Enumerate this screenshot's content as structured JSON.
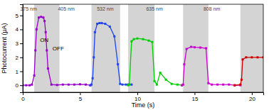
{
  "chart_data": {
    "type": "line",
    "xlabel": "Time (s)",
    "ylabel": "Photocurrent (μA)",
    "xlim": [
      0,
      21
    ],
    "ylim": [
      -0.5,
      5.8
    ],
    "xticks": [
      0,
      5,
      10,
      15,
      20
    ],
    "yticks": [
      0,
      1,
      2,
      3,
      4,
      5
    ],
    "grid": false,
    "marker": "square",
    "shaded_regions": {
      "color": "#cccccc",
      "ranges": [
        [
          1.0,
          3.2
        ],
        [
          6.0,
          8.5
        ],
        [
          9.2,
          11.5
        ],
        [
          14.0,
          16.2
        ],
        [
          19.0,
          21.0
        ]
      ]
    },
    "annotations": [
      {
        "text": "ON",
        "x": 1.5,
        "y": 3.1,
        "color": "#000000"
      },
      {
        "text": "OFF",
        "x": 2.6,
        "y": 2.5,
        "color": "#000000"
      },
      {
        "text": "375 nm",
        "x": 0.5,
        "y": 5.35,
        "color": "#444444"
      },
      {
        "text": "405 nm",
        "x": 3.8,
        "y": 5.35,
        "color": "#444444"
      },
      {
        "text": "532 nm",
        "x": 7.2,
        "y": 5.35,
        "color": "#444444"
      },
      {
        "text": "635 nm",
        "x": 11.5,
        "y": 5.35,
        "color": "#444444"
      },
      {
        "text": "808 nm",
        "x": 16.5,
        "y": 5.35,
        "color": "#444444"
      }
    ],
    "series": [
      {
        "color": "#9900cc",
        "x": [
          0.0,
          0.3,
          0.6,
          0.8,
          1.0,
          1.1,
          1.2,
          1.4,
          1.6,
          1.8,
          1.9,
          2.0,
          2.1,
          2.2,
          2.5,
          3.0,
          3.5,
          4.0,
          4.5,
          5.0,
          5.5,
          5.9
        ],
        "values": [
          0.0,
          0.0,
          0.0,
          0.05,
          0.7,
          2.5,
          4.0,
          4.85,
          4.9,
          4.85,
          4.6,
          3.8,
          2.5,
          1.2,
          0.05,
          0.02,
          0.05,
          0.05,
          0.05,
          0.07,
          0.05,
          0.0
        ]
      },
      {
        "color": "#2244ee",
        "x": [
          5.9,
          6.0,
          6.1,
          6.2,
          6.3,
          6.5,
          6.7,
          6.9,
          7.2,
          7.6,
          8.0,
          8.3,
          8.5,
          8.7,
          9.0,
          9.2,
          9.5
        ],
        "values": [
          0.0,
          0.05,
          0.5,
          2.0,
          3.8,
          4.4,
          4.45,
          4.45,
          4.4,
          4.2,
          3.5,
          1.5,
          0.1,
          0.05,
          0.05,
          0.05,
          0.05
        ]
      },
      {
        "color": "#00cc00",
        "x": [
          9.2,
          9.3,
          9.5,
          9.7,
          10.0,
          10.5,
          11.0,
          11.3,
          11.5,
          11.7,
          12.0,
          12.5,
          13.0,
          13.5,
          13.9
        ],
        "values": [
          0.0,
          0.05,
          3.15,
          3.3,
          3.35,
          3.3,
          3.2,
          3.1,
          0.3,
          0.05,
          0.9,
          0.4,
          0.1,
          0.05,
          0.0
        ]
      },
      {
        "color": "#cc00cc",
        "x": [
          13.9,
          14.0,
          14.1,
          14.3,
          14.7,
          15.0,
          15.5,
          16.0,
          16.2,
          16.5,
          17.0,
          17.5,
          18.0,
          18.5,
          19.0
        ],
        "values": [
          0.0,
          0.05,
          1.5,
          2.6,
          2.75,
          2.72,
          2.7,
          2.65,
          0.15,
          0.05,
          0.05,
          0.05,
          0.05,
          0.0,
          0.0
        ]
      },
      {
        "color": "#cc0000",
        "x": [
          18.5,
          19.0,
          19.1,
          19.2,
          19.5,
          20.0,
          20.5,
          21.0
        ],
        "values": [
          0.0,
          0.05,
          0.4,
          1.85,
          2.0,
          2.0,
          2.0,
          2.0
        ]
      }
    ]
  }
}
